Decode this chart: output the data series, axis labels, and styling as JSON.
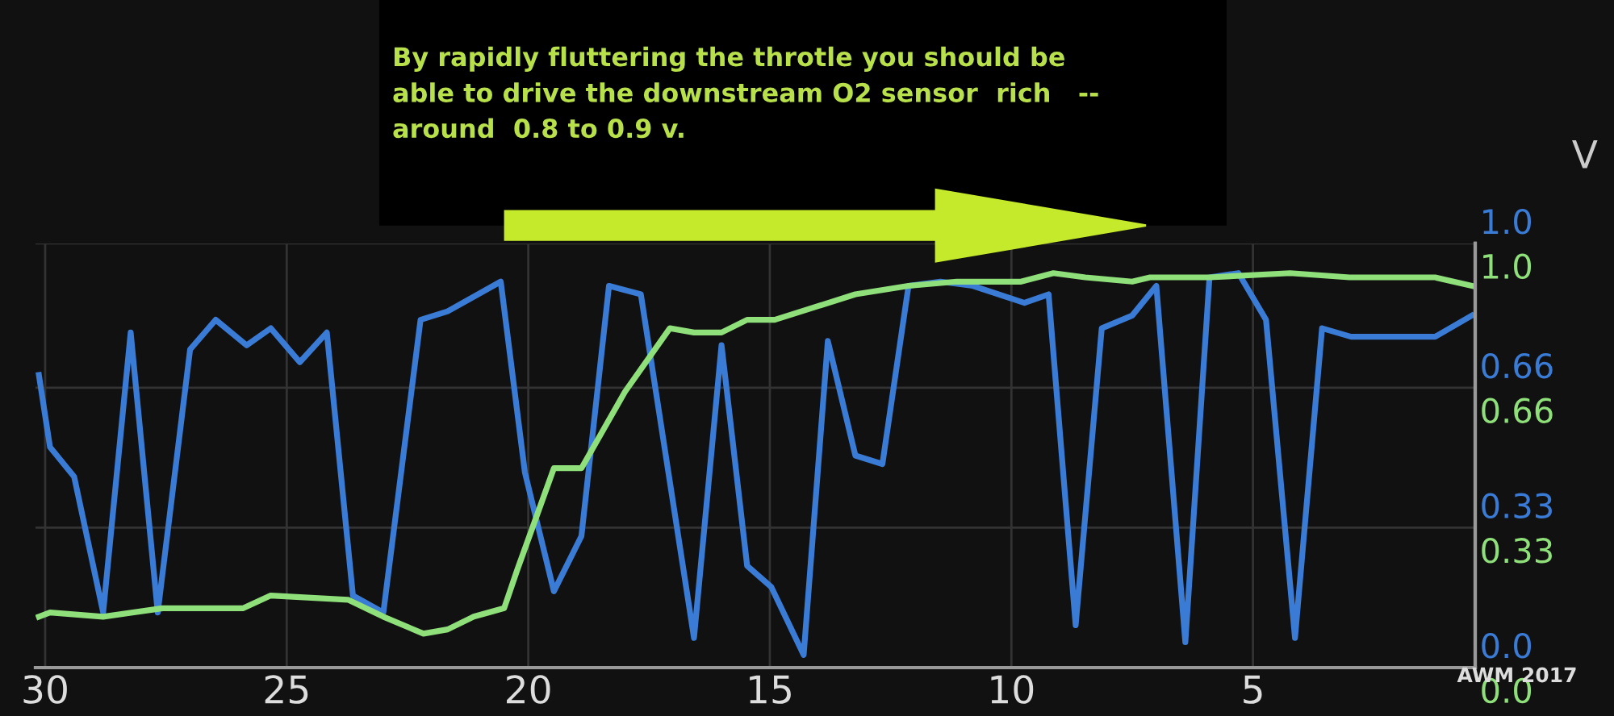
{
  "chart_data": {
    "type": "line",
    "annotations": [
      "By rapidly fluttering the throtle you should be\nable to drive the downstream O2 sensor  rich   --\naround  0.8 to 0.9 v.",
      "AWM 2017",
      "V"
    ],
    "xlim": [
      30.2,
      0.4
    ],
    "xticks": [
      30,
      25,
      20,
      15,
      10,
      5
    ],
    "ylim": [
      0,
      1.0
    ],
    "yticks": [
      {
        "value": 0,
        "label": "0.0"
      },
      {
        "value": 0.33,
        "label": "0.33"
      },
      {
        "value": 0.66,
        "label": "0.66"
      },
      {
        "value": 1.0,
        "label": "1.0"
      }
    ],
    "y2lim": [
      0,
      1.0
    ],
    "y2ticks": [
      {
        "value": 0,
        "label": "0.0"
      },
      {
        "value": 0.33,
        "label": "0.33"
      },
      {
        "value": 0.66,
        "label": "0.66"
      },
      {
        "value": 1.0,
        "label": "1.0"
      }
    ],
    "grid": true,
    "marker": "none",
    "line_style": "solid",
    "series": [
      {
        "color": "#3a7bd5",
        "axis": "y",
        "x": [
          30.13,
          29.9,
          29.4,
          28.8,
          28.23,
          27.67,
          27.0,
          26.47,
          25.83,
          25.33,
          24.73,
          24.17,
          23.63,
          23.0,
          22.23,
          21.67,
          20.57,
          20.07,
          19.47,
          18.9,
          18.33,
          17.67,
          16.57,
          16.0,
          15.47,
          14.97,
          14.3,
          13.8,
          13.23,
          12.67,
          12.13,
          11.47,
          10.8,
          9.73,
          9.23,
          8.67,
          8.13,
          7.5,
          7.0,
          6.4,
          5.9,
          5.3,
          4.73,
          4.13,
          3.57,
          2.97,
          1.23,
          0.47
        ],
        "values": [
          0.69,
          0.52,
          0.45,
          0.13,
          0.79,
          0.13,
          0.75,
          0.82,
          0.76,
          0.8,
          0.72,
          0.79,
          0.17,
          0.13,
          0.82,
          0.84,
          0.91,
          0.46,
          0.18,
          0.31,
          0.9,
          0.88,
          0.07,
          0.76,
          0.24,
          0.19,
          0.03,
          0.77,
          0.5,
          0.48,
          0.9,
          0.91,
          0.9,
          0.86,
          0.88,
          0.1,
          0.8,
          0.83,
          0.9,
          0.06,
          0.92,
          0.93,
          0.82,
          0.07,
          0.8,
          0.78,
          0.78,
          0.83
        ]
      },
      {
        "color": "#8fe07a",
        "axis": "y2",
        "x": [
          30.13,
          29.9,
          28.8,
          27.57,
          25.9,
          25.33,
          23.73,
          23.0,
          22.17,
          21.67,
          21.13,
          20.5,
          20.23,
          19.47,
          18.9,
          18.0,
          17.07,
          16.57,
          16.0,
          15.47,
          14.9,
          13.23,
          12.13,
          11.13,
          9.8,
          9.13,
          8.47,
          7.5,
          7.13,
          5.9,
          4.23,
          3.0,
          1.23,
          0.47
        ],
        "values": [
          0.12,
          0.13,
          0.12,
          0.14,
          0.14,
          0.17,
          0.16,
          0.12,
          0.08,
          0.09,
          0.12,
          0.14,
          0.23,
          0.47,
          0.47,
          0.65,
          0.8,
          0.79,
          0.79,
          0.82,
          0.82,
          0.88,
          0.9,
          0.91,
          0.91,
          0.93,
          0.92,
          0.91,
          0.92,
          0.92,
          0.93,
          0.92,
          0.92,
          0.9
        ]
      }
    ]
  }
}
